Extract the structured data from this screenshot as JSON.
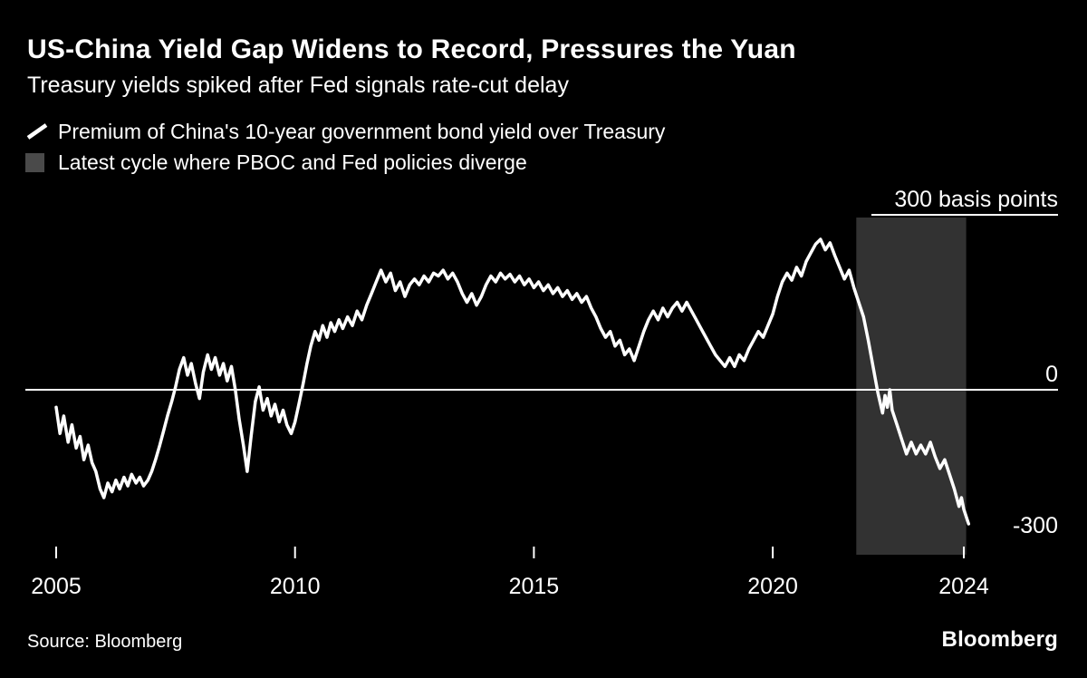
{
  "page": {
    "background": "#000000",
    "text_color": "#ffffff"
  },
  "header": {
    "title": "US-China Yield Gap Widens to Record, Pressures the Yuan",
    "subtitle": "Treasury yields spiked after Fed signals rate-cut delay"
  },
  "legend": {
    "items": [
      {
        "type": "line",
        "label": "Premium of China's 10-year government bond yield over Treasury",
        "color": "#ffffff"
      },
      {
        "type": "region",
        "label": "Latest cycle where PBOC and Fed policies diverge",
        "swatch_color": "#4a4a4a"
      }
    ]
  },
  "footer": {
    "source": "Source: Bloomberg",
    "brand": "Bloomberg"
  },
  "chart_data": {
    "type": "line",
    "title": "US-China Yield Gap Widens to Record, Pressures the Yuan",
    "subtitle": "Treasury yields spiked after Fed signals rate-cut delay",
    "unit": "basis points",
    "line_color": "#ffffff",
    "grid_color": "#ffffff",
    "x_range": [
      2005,
      2024.2
    ],
    "y_range": [
      -300,
      300
    ],
    "x_ticks": [
      {
        "value": 2005,
        "label": "2005"
      },
      {
        "value": 2010,
        "label": "2010"
      },
      {
        "value": 2015,
        "label": "2015"
      },
      {
        "value": 2020,
        "label": "2020"
      },
      {
        "value": 2024,
        "label": "2024"
      }
    ],
    "y_ticks": [
      {
        "value": 300,
        "label": "300 basis points",
        "line": "short"
      },
      {
        "value": 0,
        "label": "0",
        "line": "full"
      },
      {
        "value": -300,
        "label": "-300",
        "line": "none"
      }
    ],
    "shaded_region": {
      "label": "Latest cycle where PBOC and Fed policies diverge",
      "start": 2021.75,
      "end": 2024.05,
      "color": "#323232"
    },
    "series": [
      {
        "name": "Premium of China's 10-year government bond yield over Treasury",
        "points": [
          [
            2005.0,
            -30
          ],
          [
            2005.08,
            -75
          ],
          [
            2005.16,
            -45
          ],
          [
            2005.25,
            -90
          ],
          [
            2005.33,
            -60
          ],
          [
            2005.42,
            -100
          ],
          [
            2005.5,
            -80
          ],
          [
            2005.58,
            -120
          ],
          [
            2005.67,
            -95
          ],
          [
            2005.75,
            -125
          ],
          [
            2005.83,
            -140
          ],
          [
            2005.92,
            -170
          ],
          [
            2006.0,
            -185
          ],
          [
            2006.08,
            -160
          ],
          [
            2006.17,
            -175
          ],
          [
            2006.25,
            -155
          ],
          [
            2006.33,
            -170
          ],
          [
            2006.42,
            -150
          ],
          [
            2006.5,
            -165
          ],
          [
            2006.58,
            -145
          ],
          [
            2006.67,
            -160
          ],
          [
            2006.75,
            -150
          ],
          [
            2006.83,
            -165
          ],
          [
            2006.92,
            -155
          ],
          [
            2007.0,
            -140
          ],
          [
            2007.08,
            -120
          ],
          [
            2007.17,
            -95
          ],
          [
            2007.25,
            -70
          ],
          [
            2007.33,
            -45
          ],
          [
            2007.42,
            -20
          ],
          [
            2007.5,
            5
          ],
          [
            2007.58,
            35
          ],
          [
            2007.67,
            55
          ],
          [
            2007.75,
            25
          ],
          [
            2007.83,
            45
          ],
          [
            2007.92,
            10
          ],
          [
            2008.0,
            -15
          ],
          [
            2008.08,
            30
          ],
          [
            2008.17,
            60
          ],
          [
            2008.25,
            35
          ],
          [
            2008.33,
            55
          ],
          [
            2008.42,
            25
          ],
          [
            2008.5,
            45
          ],
          [
            2008.58,
            15
          ],
          [
            2008.67,
            40
          ],
          [
            2008.75,
            0
          ],
          [
            2008.83,
            -50
          ],
          [
            2008.92,
            -95
          ],
          [
            2009.0,
            -140
          ],
          [
            2009.08,
            -80
          ],
          [
            2009.17,
            -20
          ],
          [
            2009.25,
            5
          ],
          [
            2009.33,
            -35
          ],
          [
            2009.42,
            -15
          ],
          [
            2009.5,
            -45
          ],
          [
            2009.58,
            -25
          ],
          [
            2009.67,
            -55
          ],
          [
            2009.75,
            -35
          ],
          [
            2009.83,
            -60
          ],
          [
            2009.92,
            -75
          ],
          [
            2010.0,
            -55
          ],
          [
            2010.08,
            -25
          ],
          [
            2010.17,
            10
          ],
          [
            2010.25,
            45
          ],
          [
            2010.33,
            75
          ],
          [
            2010.42,
            100
          ],
          [
            2010.5,
            85
          ],
          [
            2010.58,
            110
          ],
          [
            2010.67,
            90
          ],
          [
            2010.75,
            115
          ],
          [
            2010.83,
            100
          ],
          [
            2010.92,
            120
          ],
          [
            2011.0,
            105
          ],
          [
            2011.1,
            125
          ],
          [
            2011.2,
            110
          ],
          [
            2011.3,
            135
          ],
          [
            2011.4,
            120
          ],
          [
            2011.5,
            145
          ],
          [
            2011.6,
            165
          ],
          [
            2011.7,
            185
          ],
          [
            2011.8,
            205
          ],
          [
            2011.9,
            185
          ],
          [
            2012.0,
            200
          ],
          [
            2012.1,
            170
          ],
          [
            2012.2,
            185
          ],
          [
            2012.3,
            160
          ],
          [
            2012.4,
            180
          ],
          [
            2012.5,
            190
          ],
          [
            2012.6,
            180
          ],
          [
            2012.7,
            195
          ],
          [
            2012.8,
            185
          ],
          [
            2012.9,
            200
          ],
          [
            2013.0,
            195
          ],
          [
            2013.1,
            205
          ],
          [
            2013.2,
            190
          ],
          [
            2013.3,
            200
          ],
          [
            2013.4,
            185
          ],
          [
            2013.5,
            165
          ],
          [
            2013.6,
            150
          ],
          [
            2013.7,
            165
          ],
          [
            2013.8,
            145
          ],
          [
            2013.9,
            160
          ],
          [
            2014.0,
            180
          ],
          [
            2014.1,
            195
          ],
          [
            2014.2,
            185
          ],
          [
            2014.3,
            200
          ],
          [
            2014.4,
            190
          ],
          [
            2014.5,
            198
          ],
          [
            2014.6,
            185
          ],
          [
            2014.7,
            195
          ],
          [
            2014.8,
            180
          ],
          [
            2014.9,
            190
          ],
          [
            2015.0,
            175
          ],
          [
            2015.1,
            185
          ],
          [
            2015.2,
            170
          ],
          [
            2015.3,
            180
          ],
          [
            2015.4,
            165
          ],
          [
            2015.5,
            175
          ],
          [
            2015.6,
            160
          ],
          [
            2015.7,
            170
          ],
          [
            2015.8,
            155
          ],
          [
            2015.9,
            165
          ],
          [
            2016.0,
            150
          ],
          [
            2016.1,
            160
          ],
          [
            2016.2,
            140
          ],
          [
            2016.3,
            125
          ],
          [
            2016.4,
            105
          ],
          [
            2016.5,
            90
          ],
          [
            2016.6,
            100
          ],
          [
            2016.7,
            75
          ],
          [
            2016.8,
            85
          ],
          [
            2016.9,
            60
          ],
          [
            2017.0,
            70
          ],
          [
            2017.1,
            50
          ],
          [
            2017.2,
            75
          ],
          [
            2017.3,
            100
          ],
          [
            2017.4,
            120
          ],
          [
            2017.5,
            135
          ],
          [
            2017.6,
            120
          ],
          [
            2017.7,
            140
          ],
          [
            2017.8,
            125
          ],
          [
            2017.9,
            140
          ],
          [
            2018.0,
            150
          ],
          [
            2018.1,
            135
          ],
          [
            2018.2,
            150
          ],
          [
            2018.3,
            135
          ],
          [
            2018.4,
            120
          ],
          [
            2018.5,
            105
          ],
          [
            2018.6,
            90
          ],
          [
            2018.7,
            75
          ],
          [
            2018.8,
            60
          ],
          [
            2018.9,
            50
          ],
          [
            2019.0,
            40
          ],
          [
            2019.1,
            55
          ],
          [
            2019.2,
            40
          ],
          [
            2019.3,
            60
          ],
          [
            2019.4,
            50
          ],
          [
            2019.5,
            70
          ],
          [
            2019.6,
            85
          ],
          [
            2019.7,
            100
          ],
          [
            2019.8,
            90
          ],
          [
            2019.9,
            110
          ],
          [
            2020.0,
            130
          ],
          [
            2020.1,
            160
          ],
          [
            2020.2,
            185
          ],
          [
            2020.3,
            200
          ],
          [
            2020.4,
            188
          ],
          [
            2020.5,
            210
          ],
          [
            2020.6,
            195
          ],
          [
            2020.7,
            220
          ],
          [
            2020.8,
            235
          ],
          [
            2020.9,
            250
          ],
          [
            2021.0,
            258
          ],
          [
            2021.1,
            240
          ],
          [
            2021.2,
            252
          ],
          [
            2021.3,
            230
          ],
          [
            2021.4,
            210
          ],
          [
            2021.5,
            190
          ],
          [
            2021.6,
            205
          ],
          [
            2021.7,
            175
          ],
          [
            2021.8,
            150
          ],
          [
            2021.9,
            125
          ],
          [
            2022.0,
            85
          ],
          [
            2022.1,
            40
          ],
          [
            2022.2,
            -5
          ],
          [
            2022.3,
            -40
          ],
          [
            2022.35,
            -10
          ],
          [
            2022.4,
            -30
          ],
          [
            2022.45,
            0
          ],
          [
            2022.5,
            -35
          ],
          [
            2022.6,
            -60
          ],
          [
            2022.7,
            -85
          ],
          [
            2022.8,
            -110
          ],
          [
            2022.9,
            -90
          ],
          [
            2023.0,
            -110
          ],
          [
            2023.1,
            -95
          ],
          [
            2023.2,
            -110
          ],
          [
            2023.3,
            -90
          ],
          [
            2023.4,
            -115
          ],
          [
            2023.5,
            -135
          ],
          [
            2023.6,
            -120
          ],
          [
            2023.7,
            -145
          ],
          [
            2023.8,
            -170
          ],
          [
            2023.9,
            -200
          ],
          [
            2023.95,
            -185
          ],
          [
            2024.0,
            -205
          ],
          [
            2024.1,
            -230
          ]
        ]
      }
    ]
  }
}
